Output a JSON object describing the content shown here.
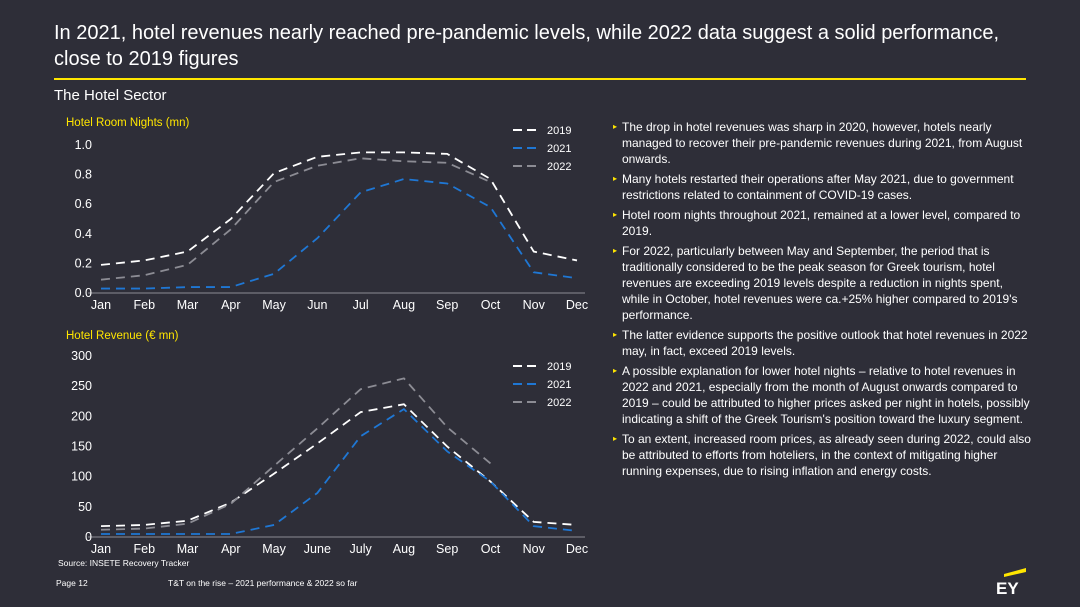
{
  "header": {
    "title": "In 2021, hotel revenues nearly reached pre-pandemic levels, while 2022 data suggest a solid performance, close to 2019 figures",
    "subtitle": "The Hotel Sector"
  },
  "colors": {
    "background": "#2e2e38",
    "accent": "#ffe600",
    "series_2019": "#ffffff",
    "series_2021": "#1f77d4",
    "series_2022": "#8c8c94"
  },
  "chart_data": [
    {
      "type": "line",
      "title": "Hotel Room Nights (mn)",
      "categories": [
        "Jan",
        "Feb",
        "Mar",
        "Apr",
        "May",
        "Jun",
        "Jul",
        "Aug",
        "Sep",
        "Oct",
        "Nov",
        "Dec"
      ],
      "ylim": [
        0,
        1.0
      ],
      "yticks": [
        "0.0",
        "0.2",
        "0.4",
        "0.6",
        "0.8",
        "1.0"
      ],
      "ytick_values": [
        0,
        0.2,
        0.4,
        0.6,
        0.8,
        1.0
      ],
      "legend_position": "top-right",
      "series": [
        {
          "name": "2019",
          "values": [
            0.19,
            0.22,
            0.28,
            0.5,
            0.81,
            0.92,
            0.95,
            0.95,
            0.94,
            0.77,
            0.28,
            0.22
          ]
        },
        {
          "name": "2021",
          "values": [
            0.03,
            0.03,
            0.04,
            0.04,
            0.13,
            0.37,
            0.68,
            0.77,
            0.74,
            0.58,
            0.14,
            0.1
          ]
        },
        {
          "name": "2022",
          "values": [
            0.09,
            0.12,
            0.19,
            0.43,
            0.75,
            0.86,
            0.91,
            0.89,
            0.88,
            0.75,
            null,
            null
          ]
        }
      ]
    },
    {
      "type": "line",
      "title": "Hotel Revenue (€ mn)",
      "categories": [
        "Jan",
        "Feb",
        "Mar",
        "Apr",
        "May",
        "June",
        "July",
        "Aug",
        "Sep",
        "Oct",
        "Nov",
        "Dec"
      ],
      "ylim": [
        0,
        300
      ],
      "yticks": [
        "0",
        "50",
        "100",
        "150",
        "200",
        "250",
        "300"
      ],
      "ytick_values": [
        0,
        50,
        100,
        150,
        200,
        250,
        300
      ],
      "legend_position": "top-right",
      "series": [
        {
          "name": "2019",
          "values": [
            18,
            20,
            27,
            57,
            105,
            155,
            207,
            220,
            150,
            92,
            25,
            20
          ]
        },
        {
          "name": "2021",
          "values": [
            5,
            5,
            5,
            5,
            20,
            73,
            167,
            212,
            142,
            92,
            18,
            10
          ]
        },
        {
          "name": "2022",
          "values": [
            12,
            14,
            22,
            55,
            118,
            180,
            245,
            263,
            182,
            122,
            null,
            null
          ]
        }
      ]
    }
  ],
  "bullets": [
    "The drop in hotel revenues was sharp in 2020, however, hotels nearly managed to recover their pre-pandemic revenues during 2021, from August onwards.",
    "Many hotels restarted their operations after May 2021, due to government restrictions related to containment of COVID-19 cases.",
    "Hotel room nights throughout 2021, remained at a lower level, compared to 2019.",
    "For 2022, particularly between May and September, the period that is traditionally considered to be the peak season for Greek tourism, hotel revenues are exceeding 2019 levels despite a reduction in nights spent, while in October, hotel revenues were ca.+25% higher compared to 2019's performance.",
    "The latter evidence supports the positive outlook that hotel revenues in 2022 may, in fact, exceed 2019 levels.",
    "A possible explanation for lower hotel nights – relative to hotel revenues in 2022 and 2021, especially from the month of August onwards compared to 2019 – could be attributed to higher prices asked per night in hotels, possibly indicating a shift of the Greek Tourism's position toward the luxury segment.",
    "To an extent, increased room prices, as already seen during 2022, could also be attributed to efforts from hoteliers, in the context of mitigating higher running expenses, due to rising inflation and energy costs."
  ],
  "footer": {
    "source": "Source: INSETE Recovery Tracker",
    "page": "Page 12",
    "doc": "T&T on the rise – 2021 performance & 2022 so far",
    "logo": "EY"
  }
}
